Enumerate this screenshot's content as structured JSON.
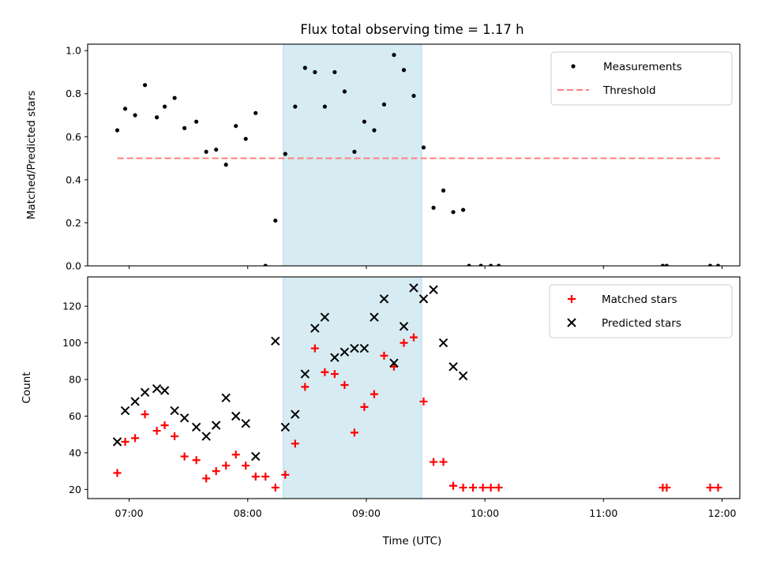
{
  "chart_data": {
    "type": "scatter",
    "title": "Flux total observing time = 1.17 h",
    "xlabel": "Time (UTC)",
    "xlim": [
      "06:39",
      "12:09"
    ],
    "xticks": [
      "07:00",
      "08:00",
      "09:00",
      "10:00",
      "11:00",
      "12:00"
    ],
    "shaded_interval": {
      "start": "08:18",
      "end": "09:28",
      "color": "#add8e6"
    },
    "panels": [
      {
        "ylabel": "Matched/Predicted stars",
        "ylim": [
          0,
          1.03
        ],
        "yticks": [
          "0.0",
          "0.2",
          "0.4",
          "0.6",
          "0.8",
          "1.0"
        ],
        "legend_position": "upper right",
        "series": [
          {
            "name": "Measurements",
            "marker": "dot",
            "color": "#000000",
            "points": [
              [
                "06:54",
                0.63
              ],
              [
                "06:58",
                0.73
              ],
              [
                "07:03",
                0.7
              ],
              [
                "07:08",
                0.84
              ],
              [
                "07:14",
                0.69
              ],
              [
                "07:18",
                0.74
              ],
              [
                "07:23",
                0.78
              ],
              [
                "07:28",
                0.64
              ],
              [
                "07:34",
                0.67
              ],
              [
                "07:39",
                0.53
              ],
              [
                "07:44",
                0.54
              ],
              [
                "07:49",
                0.47
              ],
              [
                "07:54",
                0.65
              ],
              [
                "07:59",
                0.59
              ],
              [
                "08:04",
                0.71
              ],
              [
                "08:09",
                0.0
              ],
              [
                "08:14",
                0.21
              ],
              [
                "08:19",
                0.52
              ],
              [
                "08:24",
                0.74
              ],
              [
                "08:29",
                0.92
              ],
              [
                "08:34",
                0.9
              ],
              [
                "08:39",
                0.74
              ],
              [
                "08:44",
                0.9
              ],
              [
                "08:49",
                0.81
              ],
              [
                "08:54",
                0.53
              ],
              [
                "08:59",
                0.67
              ],
              [
                "09:04",
                0.63
              ],
              [
                "09:09",
                0.75
              ],
              [
                "09:14",
                0.98
              ],
              [
                "09:19",
                0.91
              ],
              [
                "09:24",
                0.79
              ],
              [
                "09:29",
                0.55
              ],
              [
                "09:34",
                0.27
              ],
              [
                "09:39",
                0.35
              ],
              [
                "09:44",
                0.25
              ],
              [
                "09:49",
                0.26
              ],
              [
                "09:52",
                0.0
              ],
              [
                "09:58",
                0.0
              ],
              [
                "10:03",
                0.0
              ],
              [
                "10:07",
                0.0
              ],
              [
                "11:30",
                0.0
              ],
              [
                "11:32",
                0.0
              ],
              [
                "11:54",
                0.0
              ],
              [
                "11:58",
                0.0
              ]
            ]
          },
          {
            "name": "Threshold",
            "line": "dashed",
            "color": "#ff7f7f",
            "from": "06:54",
            "to": "11:59",
            "value": 0.5
          }
        ]
      },
      {
        "ylabel": "Count",
        "ylim": [
          15,
          136
        ],
        "yticks": [
          "20",
          "40",
          "60",
          "80",
          "100",
          "120"
        ],
        "legend_position": "upper right",
        "series": [
          {
            "name": "Matched stars",
            "marker": "plus",
            "color": "#ff0000",
            "points": [
              [
                "06:54",
                29
              ],
              [
                "06:58",
                46
              ],
              [
                "07:03",
                48
              ],
              [
                "07:08",
                61
              ],
              [
                "07:14",
                52
              ],
              [
                "07:18",
                55
              ],
              [
                "07:23",
                49
              ],
              [
                "07:28",
                38
              ],
              [
                "07:34",
                36
              ],
              [
                "07:39",
                26
              ],
              [
                "07:44",
                30
              ],
              [
                "07:49",
                33
              ],
              [
                "07:54",
                39
              ],
              [
                "07:59",
                33
              ],
              [
                "08:04",
                27
              ],
              [
                "08:09",
                27
              ],
              [
                "08:14",
                21
              ],
              [
                "08:19",
                28
              ],
              [
                "08:24",
                45
              ],
              [
                "08:29",
                76
              ],
              [
                "08:34",
                97
              ],
              [
                "08:39",
                84
              ],
              [
                "08:44",
                83
              ],
              [
                "08:49",
                77
              ],
              [
                "08:54",
                51
              ],
              [
                "08:59",
                65
              ],
              [
                "09:04",
                72
              ],
              [
                "09:09",
                93
              ],
              [
                "09:14",
                87
              ],
              [
                "09:19",
                100
              ],
              [
                "09:24",
                103
              ],
              [
                "09:29",
                68
              ],
              [
                "09:34",
                35
              ],
              [
                "09:39",
                35
              ],
              [
                "09:44",
                22
              ],
              [
                "09:49",
                21
              ],
              [
                "09:54",
                21
              ],
              [
                "09:59",
                21
              ],
              [
                "10:03",
                21
              ],
              [
                "10:07",
                21
              ],
              [
                "11:30",
                21
              ],
              [
                "11:32",
                21
              ],
              [
                "11:54",
                21
              ],
              [
                "11:58",
                21
              ]
            ]
          },
          {
            "name": "Predicted stars",
            "marker": "x",
            "color": "#000000",
            "points": [
              [
                "06:54",
                46
              ],
              [
                "06:58",
                63
              ],
              [
                "07:03",
                68
              ],
              [
                "07:08",
                73
              ],
              [
                "07:14",
                75
              ],
              [
                "07:18",
                74
              ],
              [
                "07:23",
                63
              ],
              [
                "07:28",
                59
              ],
              [
                "07:34",
                54
              ],
              [
                "07:39",
                49
              ],
              [
                "07:44",
                55
              ],
              [
                "07:49",
                70
              ],
              [
                "07:54",
                60
              ],
              [
                "07:59",
                56
              ],
              [
                "08:04",
                38
              ],
              [
                "08:14",
                101
              ],
              [
                "08:19",
                54
              ],
              [
                "08:24",
                61
              ],
              [
                "08:29",
                83
              ],
              [
                "08:34",
                108
              ],
              [
                "08:39",
                114
              ],
              [
                "08:44",
                92
              ],
              [
                "08:49",
                95
              ],
              [
                "08:54",
                97
              ],
              [
                "08:59",
                97
              ],
              [
                "09:04",
                114
              ],
              [
                "09:09",
                124
              ],
              [
                "09:14",
                89
              ],
              [
                "09:19",
                109
              ],
              [
                "09:24",
                130
              ],
              [
                "09:29",
                124
              ],
              [
                "09:34",
                129
              ],
              [
                "09:39",
                100
              ],
              [
                "09:44",
                87
              ],
              [
                "09:49",
                82
              ]
            ]
          }
        ]
      }
    ]
  }
}
